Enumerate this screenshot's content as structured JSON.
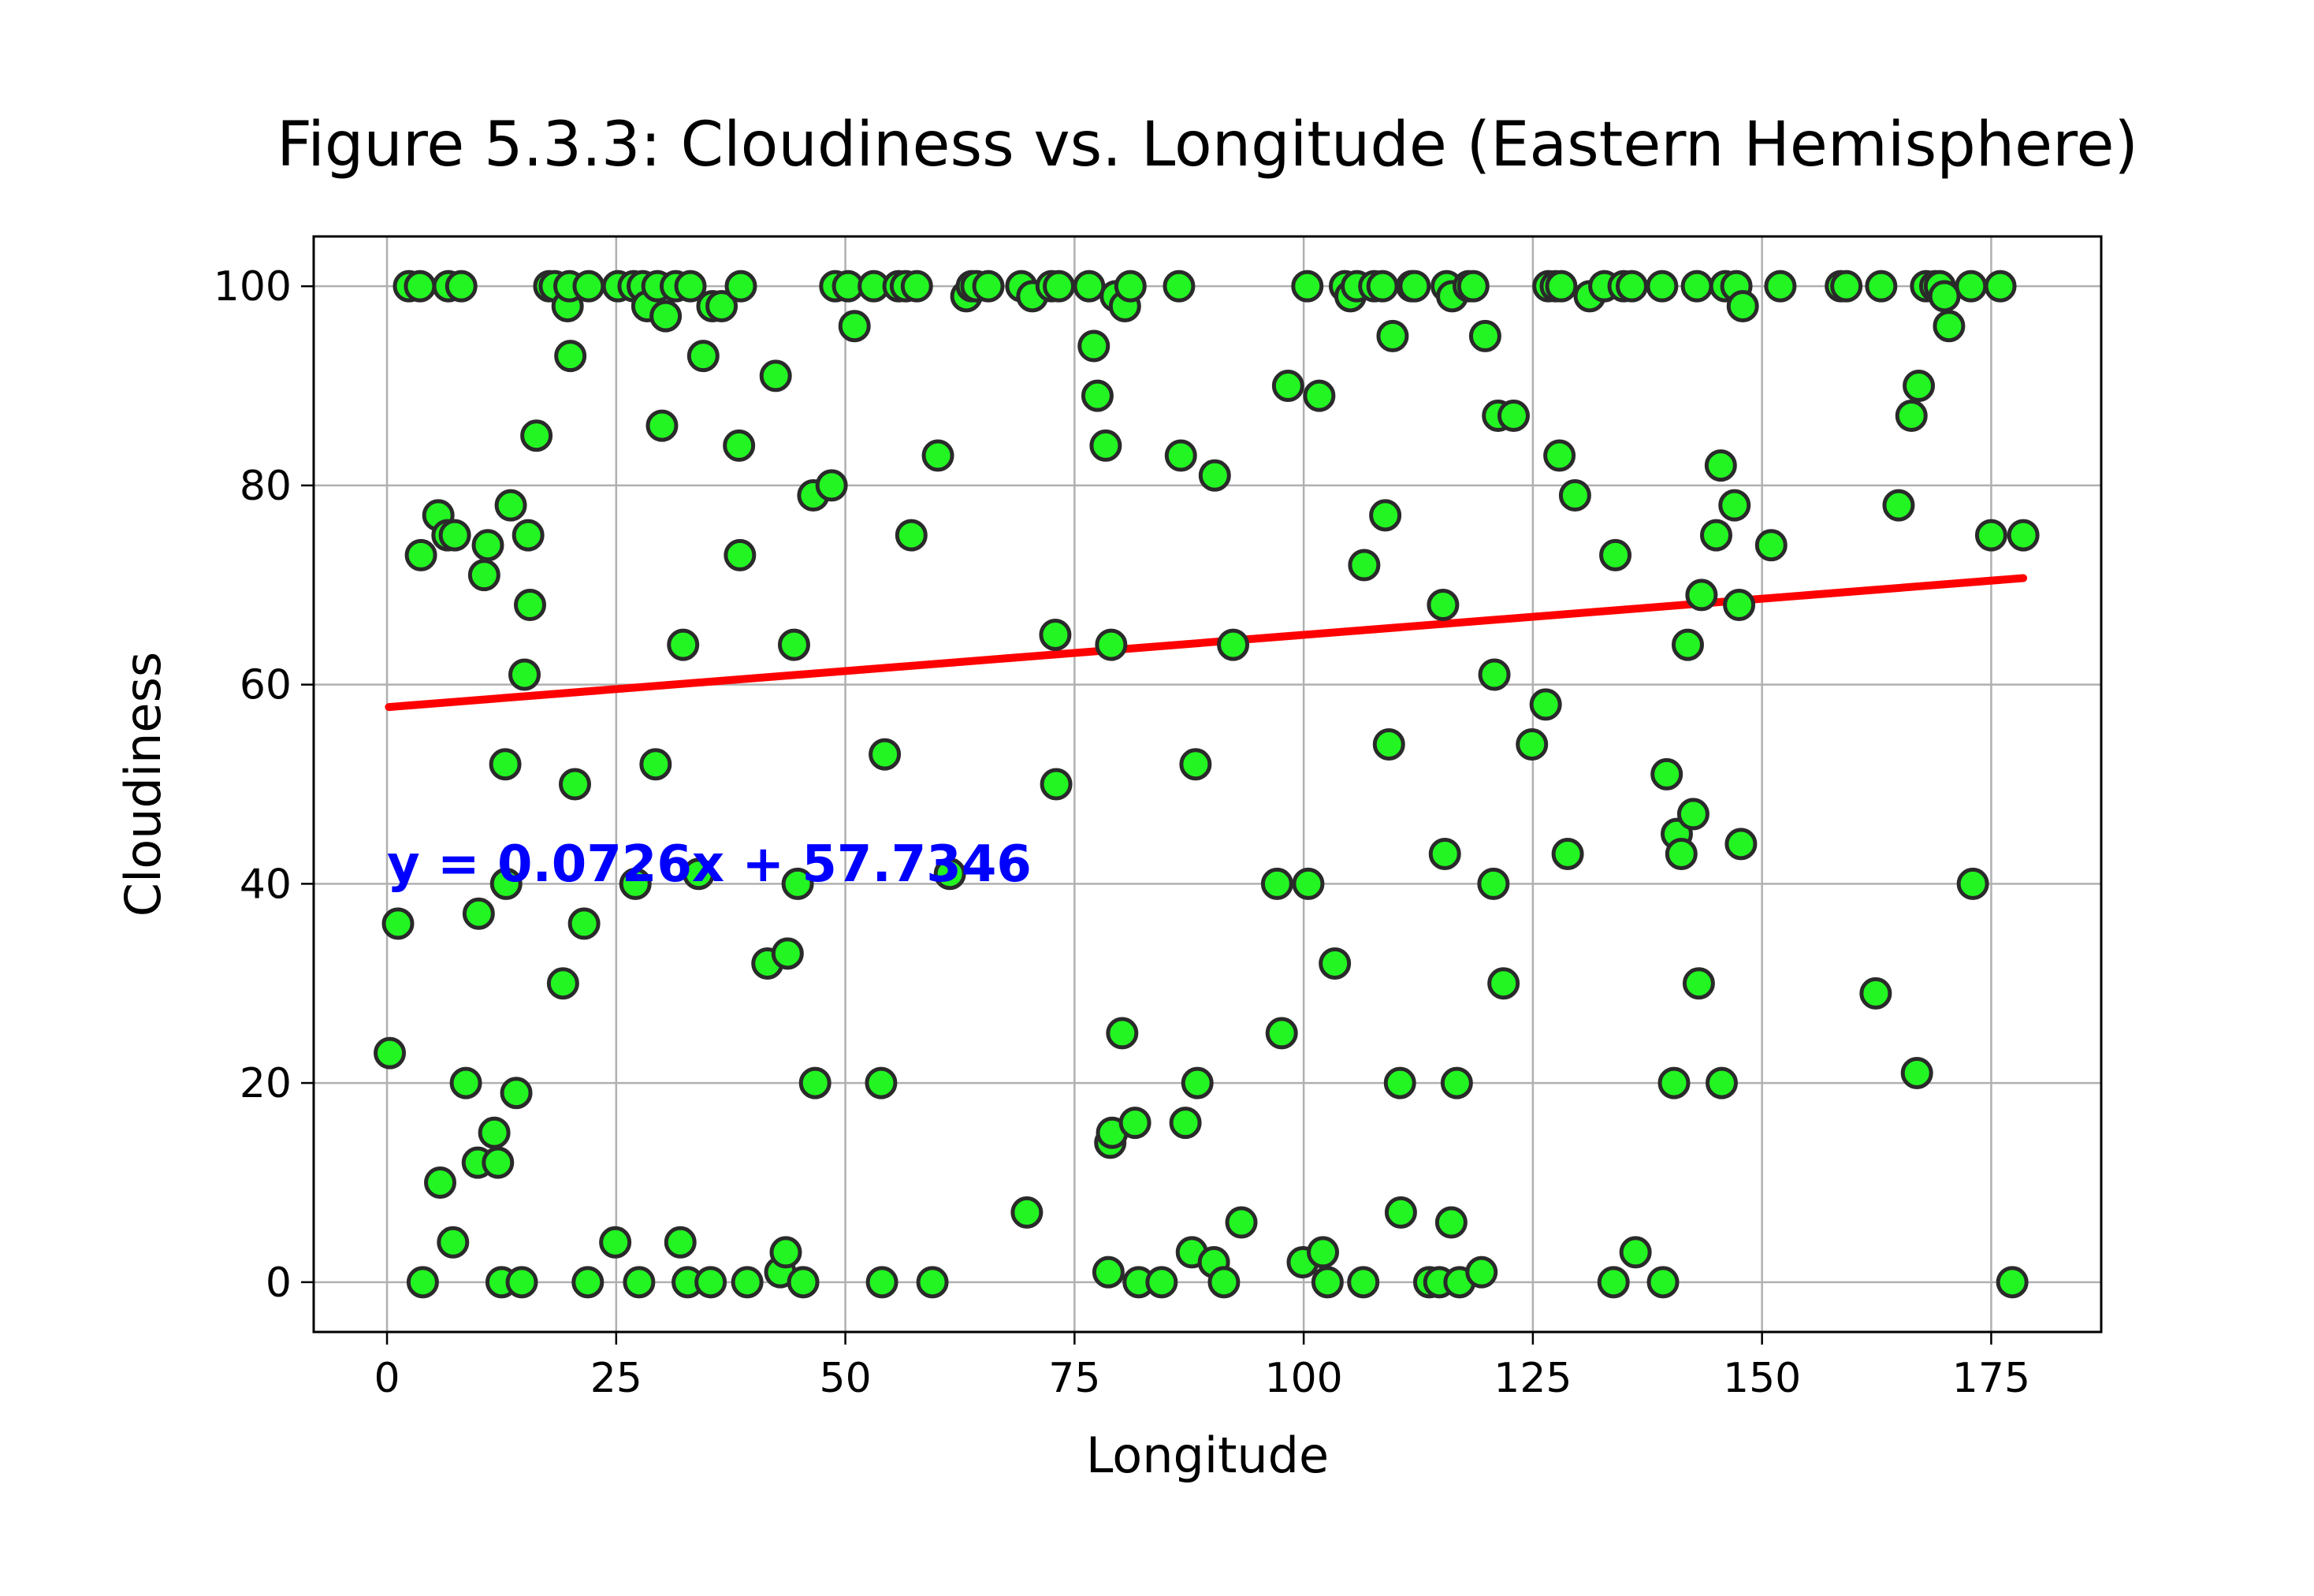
{
  "chart_data": {
    "type": "scatter",
    "title": "Figure 5.3.3: Cloudiness vs. Longitude (Eastern Hemisphere)",
    "xlabel": "Longitude",
    "ylabel": "Cloudiness",
    "xlim": [
      -8,
      187
    ],
    "ylim": [
      -5,
      105
    ],
    "xticks": [
      0,
      25,
      50,
      75,
      100,
      125,
      150,
      175
    ],
    "yticks": [
      0,
      20,
      40,
      60,
      80,
      100
    ],
    "grid": true,
    "marker_color": "#22f522",
    "marker_edge_color": "#2a2a2a",
    "fit_color": "#ff0000",
    "equation_color": "#0000ff",
    "regression": {
      "slope": 0.0726,
      "intercept": 57.7346,
      "x_range": [
        0.2,
        178.5
      ],
      "equation_label": "y = 0.0726x + 57.7346",
      "label_position": [
        0,
        42
      ]
    },
    "points": [
      [
        0.3,
        23
      ],
      [
        1.2,
        36
      ],
      [
        2.4,
        100
      ],
      [
        3.6,
        100
      ],
      [
        3.7,
        73
      ],
      [
        3.9,
        0
      ],
      [
        5.6,
        77
      ],
      [
        5.8,
        10
      ],
      [
        6.6,
        75
      ],
      [
        6.7,
        100
      ],
      [
        7.2,
        4
      ],
      [
        7.4,
        75
      ],
      [
        8.1,
        100
      ],
      [
        8.6,
        20
      ],
      [
        9.9,
        12
      ],
      [
        10.0,
        37
      ],
      [
        10.6,
        71
      ],
      [
        11.0,
        74
      ],
      [
        11.7,
        15
      ],
      [
        12.1,
        12
      ],
      [
        12.5,
        0
      ],
      [
        12.9,
        52
      ],
      [
        13.0,
        40
      ],
      [
        13.5,
        78
      ],
      [
        14.1,
        19
      ],
      [
        14.7,
        0
      ],
      [
        15.0,
        61
      ],
      [
        15.4,
        75
      ],
      [
        15.6,
        68
      ],
      [
        16.3,
        85
      ],
      [
        17.7,
        100
      ],
      [
        18.3,
        100
      ],
      [
        19.2,
        30
      ],
      [
        19.7,
        98
      ],
      [
        19.9,
        100
      ],
      [
        20.0,
        93
      ],
      [
        20.5,
        50
      ],
      [
        21.5,
        36
      ],
      [
        21.9,
        0
      ],
      [
        22.0,
        100
      ],
      [
        24.9,
        4
      ],
      [
        25.2,
        100
      ],
      [
        26.9,
        100
      ],
      [
        27.1,
        40
      ],
      [
        27.5,
        0
      ],
      [
        27.9,
        100
      ],
      [
        28.4,
        98
      ],
      [
        29.3,
        52
      ],
      [
        29.5,
        100
      ],
      [
        30.0,
        86
      ],
      [
        30.4,
        97
      ],
      [
        31.5,
        100
      ],
      [
        32.0,
        4
      ],
      [
        32.3,
        64
      ],
      [
        32.8,
        0
      ],
      [
        33.1,
        100
      ],
      [
        34.0,
        41
      ],
      [
        34.5,
        93
      ],
      [
        35.3,
        0
      ],
      [
        35.5,
        98
      ],
      [
        36.5,
        98
      ],
      [
        38.4,
        84
      ],
      [
        38.5,
        73
      ],
      [
        38.6,
        100
      ],
      [
        39.3,
        0
      ],
      [
        41.5,
        32
      ],
      [
        42.4,
        91
      ],
      [
        42.9,
        1
      ],
      [
        43.5,
        3
      ],
      [
        43.7,
        33
      ],
      [
        44.4,
        64
      ],
      [
        44.8,
        40
      ],
      [
        45.4,
        0
      ],
      [
        46.5,
        79
      ],
      [
        46.7,
        20
      ],
      [
        48.5,
        80
      ],
      [
        48.9,
        100
      ],
      [
        50.3,
        100
      ],
      [
        51.0,
        96
      ],
      [
        53.1,
        100
      ],
      [
        53.9,
        20
      ],
      [
        54.0,
        0
      ],
      [
        54.3,
        53
      ],
      [
        55.8,
        100
      ],
      [
        56.6,
        100
      ],
      [
        57.2,
        75
      ],
      [
        57.8,
        100
      ],
      [
        59.5,
        0
      ],
      [
        60.1,
        83
      ],
      [
        61.4,
        41
      ],
      [
        63.2,
        99
      ],
      [
        63.8,
        100
      ],
      [
        64.3,
        100
      ],
      [
        65.6,
        100
      ],
      [
        69.2,
        100
      ],
      [
        69.8,
        7
      ],
      [
        70.4,
        99
      ],
      [
        72.5,
        100
      ],
      [
        72.9,
        65
      ],
      [
        73.0,
        50
      ],
      [
        73.3,
        100
      ],
      [
        76.6,
        100
      ],
      [
        77.1,
        94
      ],
      [
        77.5,
        89
      ],
      [
        78.4,
        84
      ],
      [
        78.7,
        1
      ],
      [
        78.9,
        14
      ],
      [
        79.0,
        64
      ],
      [
        79.1,
        15
      ],
      [
        79.5,
        99
      ],
      [
        80.2,
        25
      ],
      [
        80.5,
        98
      ],
      [
        81.1,
        100
      ],
      [
        81.6,
        16
      ],
      [
        82.0,
        0
      ],
      [
        84.5,
        0
      ],
      [
        86.4,
        100
      ],
      [
        86.6,
        83
      ],
      [
        87.1,
        16
      ],
      [
        87.8,
        3
      ],
      [
        88.2,
        52
      ],
      [
        88.4,
        20
      ],
      [
        90.2,
        2
      ],
      [
        90.3,
        81
      ],
      [
        91.3,
        0
      ],
      [
        92.3,
        64
      ],
      [
        93.2,
        6
      ],
      [
        97.1,
        40
      ],
      [
        97.6,
        25
      ],
      [
        98.3,
        90
      ],
      [
        99.9,
        2
      ],
      [
        100.4,
        100
      ],
      [
        100.5,
        40
      ],
      [
        101.7,
        89
      ],
      [
        102.1,
        3
      ],
      [
        102.6,
        0
      ],
      [
        103.4,
        32
      ],
      [
        104.5,
        100
      ],
      [
        105.1,
        99
      ],
      [
        105.8,
        100
      ],
      [
        106.5,
        0
      ],
      [
        106.6,
        72
      ],
      [
        107.7,
        100
      ],
      [
        108.6,
        100
      ],
      [
        108.9,
        77
      ],
      [
        109.3,
        54
      ],
      [
        109.7,
        95
      ],
      [
        110.5,
        20
      ],
      [
        110.6,
        7
      ],
      [
        111.8,
        100
      ],
      [
        112.1,
        100
      ],
      [
        113.7,
        0
      ],
      [
        114.8,
        0
      ],
      [
        115.2,
        68
      ],
      [
        115.4,
        43
      ],
      [
        115.6,
        100
      ],
      [
        116.1,
        6
      ],
      [
        116.2,
        99
      ],
      [
        116.7,
        20
      ],
      [
        117.0,
        0
      ],
      [
        118.0,
        100
      ],
      [
        118.5,
        100
      ],
      [
        119.4,
        1
      ],
      [
        119.8,
        95
      ],
      [
        120.7,
        40
      ],
      [
        120.8,
        61
      ],
      [
        121.2,
        87
      ],
      [
        121.8,
        30
      ],
      [
        122.9,
        87
      ],
      [
        124.9,
        54
      ],
      [
        126.4,
        58
      ],
      [
        126.7,
        100
      ],
      [
        127.5,
        100
      ],
      [
        127.9,
        83
      ],
      [
        128.1,
        100
      ],
      [
        128.8,
        43
      ],
      [
        129.6,
        79
      ],
      [
        131.2,
        99
      ],
      [
        132.8,
        100
      ],
      [
        133.8,
        0
      ],
      [
        134.0,
        73
      ],
      [
        134.9,
        100
      ],
      [
        135.8,
        100
      ],
      [
        136.2,
        3
      ],
      [
        139.1,
        100
      ],
      [
        139.2,
        0
      ],
      [
        139.6,
        51
      ],
      [
        140.4,
        20
      ],
      [
        140.7,
        45
      ],
      [
        141.2,
        43
      ],
      [
        141.9,
        64
      ],
      [
        142.5,
        47
      ],
      [
        142.9,
        100
      ],
      [
        143.1,
        30
      ],
      [
        143.4,
        69
      ],
      [
        145.0,
        75
      ],
      [
        145.5,
        82
      ],
      [
        145.6,
        20
      ],
      [
        146.0,
        100
      ],
      [
        147.0,
        78
      ],
      [
        147.2,
        100
      ],
      [
        147.5,
        68
      ],
      [
        147.7,
        44
      ],
      [
        147.9,
        98
      ],
      [
        151.0,
        74
      ],
      [
        152.0,
        100
      ],
      [
        158.6,
        100
      ],
      [
        159.2,
        100
      ],
      [
        162.4,
        29
      ],
      [
        163.0,
        100
      ],
      [
        164.9,
        78
      ],
      [
        166.3,
        87
      ],
      [
        166.9,
        21
      ],
      [
        167.1,
        90
      ],
      [
        167.9,
        100
      ],
      [
        168.9,
        100
      ],
      [
        169.4,
        100
      ],
      [
        169.9,
        99
      ],
      [
        170.4,
        96
      ],
      [
        172.8,
        100
      ],
      [
        173.0,
        40
      ],
      [
        175.0,
        75
      ],
      [
        176.0,
        100
      ],
      [
        177.3,
        0
      ],
      [
        178.5,
        75
      ]
    ]
  }
}
